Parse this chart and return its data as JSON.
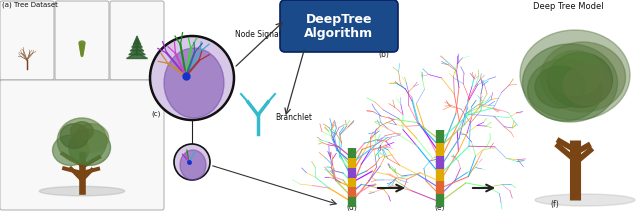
{
  "bg_color": "#ffffff",
  "fig_width": 6.4,
  "fig_height": 2.12,
  "labels": {
    "a": "(a) Tree Dataset",
    "b": "(b)",
    "c": "(c)",
    "d": "(d)",
    "e": "(e)",
    "f": "(f)",
    "node_sig": "Node Signature",
    "branchlet": "Branchlet",
    "deeptree_line1": "DeepTree",
    "deeptree_line2": "Algorithm",
    "deep_tree_model": "Deep Tree Model"
  },
  "deepbox_color": "#1a4a8a",
  "deepbox_text_color": "#ffffff",
  "arrow_color": "#333333",
  "trunk_colors": [
    "#3a8a3a",
    "#ddaa00",
    "#8844cc",
    "#ddaa00",
    "#dd6633",
    "#3a8a3a"
  ],
  "branch_palette": [
    "#ff6666",
    "#66ff66",
    "#6666ff",
    "#ffaa00",
    "#aa00ff",
    "#00aaff",
    "#ff8844",
    "#44ffaa",
    "#cc44aa",
    "#aacc44",
    "#ff6644",
    "#88aaff",
    "#aaffaa",
    "#ff88aa",
    "#44ccff",
    "#ffcc44",
    "#cc8844",
    "#44aacc"
  ]
}
